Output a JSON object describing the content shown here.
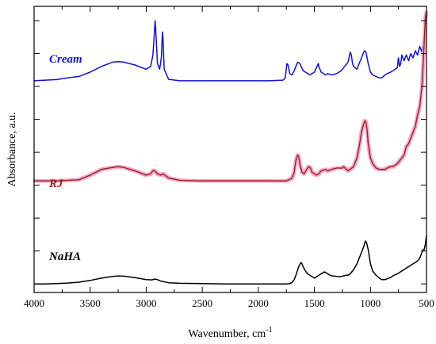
{
  "chart_data": {
    "type": "line",
    "title": "",
    "xlabel": "Wavenumber, cm",
    "xlabel_superscript": "-1",
    "ylabel": "Absorbance, a.u.",
    "xlim": [
      4000,
      500
    ],
    "x_reversed": true,
    "ylim": [
      0,
      1
    ],
    "y_ticks_labeled": false,
    "x_ticks": [
      4000,
      3500,
      3000,
      2500,
      2000,
      1500,
      1000,
      500
    ],
    "x_tick_labels": [
      "4000",
      "3500",
      "3000",
      "2500",
      "2000",
      "1500",
      "1000",
      "500"
    ],
    "y_ticks": [
      0.03,
      0.145,
      0.26,
      0.375,
      0.49,
      0.605,
      0.72,
      0.835,
      0.95
    ],
    "grid": false,
    "legend": "inline labels",
    "series": [
      {
        "name": "Cream",
        "color": "#1010d8",
        "glow": false,
        "x": [
          4000,
          3900,
          3800,
          3700,
          3600,
          3500,
          3400,
          3300,
          3250,
          3200,
          3100,
          3000,
          2960,
          2940,
          2925,
          2920,
          2915,
          2900,
          2880,
          2865,
          2855,
          2850,
          2840,
          2800,
          2700,
          2500,
          2300,
          2100,
          1900,
          1780,
          1760,
          1745,
          1735,
          1720,
          1700,
          1680,
          1650,
          1630,
          1600,
          1580,
          1560,
          1540,
          1500,
          1470,
          1465,
          1460,
          1440,
          1400,
          1380,
          1350,
          1300,
          1260,
          1240,
          1220,
          1200,
          1180,
          1170,
          1160,
          1150,
          1120,
          1100,
          1080,
          1060,
          1050,
          1040,
          1020,
          1000,
          980,
          950,
          920,
          900,
          870,
          850,
          820,
          800,
          780,
          760,
          750,
          740,
          730,
          720,
          700,
          680,
          660,
          640,
          620,
          600,
          580,
          560,
          540,
          530,
          520,
          510,
          500
        ],
        "y": [
          0.74,
          0.742,
          0.744,
          0.75,
          0.755,
          0.77,
          0.79,
          0.805,
          0.807,
          0.805,
          0.795,
          0.78,
          0.79,
          0.83,
          0.92,
          0.95,
          0.92,
          0.8,
          0.78,
          0.82,
          0.91,
          0.89,
          0.78,
          0.745,
          0.74,
          0.74,
          0.74,
          0.74,
          0.74,
          0.742,
          0.75,
          0.8,
          0.795,
          0.765,
          0.76,
          0.775,
          0.805,
          0.8,
          0.775,
          0.77,
          0.765,
          0.76,
          0.77,
          0.795,
          0.8,
          0.79,
          0.77,
          0.76,
          0.765,
          0.76,
          0.765,
          0.775,
          0.785,
          0.795,
          0.805,
          0.84,
          0.83,
          0.8,
          0.79,
          0.78,
          0.8,
          0.82,
          0.84,
          0.845,
          0.84,
          0.8,
          0.77,
          0.76,
          0.755,
          0.75,
          0.75,
          0.76,
          0.765,
          0.77,
          0.775,
          0.78,
          0.785,
          0.82,
          0.79,
          0.8,
          0.83,
          0.81,
          0.83,
          0.81,
          0.835,
          0.82,
          0.845,
          0.83,
          0.86,
          0.84,
          0.88,
          0.84,
          0.88,
          0.9
        ]
      },
      {
        "name": "RJ",
        "color": "#a81c1c",
        "glow": true,
        "x": [
          4000,
          3900,
          3800,
          3700,
          3600,
          3500,
          3400,
          3300,
          3250,
          3200,
          3100,
          3000,
          2960,
          2940,
          2930,
          2900,
          2870,
          2850,
          2800,
          2700,
          2500,
          2300,
          2100,
          1900,
          1750,
          1720,
          1700,
          1680,
          1665,
          1650,
          1640,
          1630,
          1610,
          1590,
          1570,
          1550,
          1535,
          1520,
          1500,
          1480,
          1460,
          1440,
          1400,
          1380,
          1350,
          1300,
          1250,
          1240,
          1200,
          1150,
          1120,
          1100,
          1080,
          1060,
          1050,
          1040,
          1030,
          1020,
          1000,
          980,
          950,
          920,
          900,
          870,
          850,
          820,
          800,
          780,
          760,
          740,
          720,
          700,
          680,
          660,
          640,
          620,
          600,
          580,
          560,
          540,
          530,
          520,
          510,
          500
        ],
        "y": [
          0.39,
          0.39,
          0.39,
          0.392,
          0.394,
          0.41,
          0.43,
          0.437,
          0.44,
          0.437,
          0.425,
          0.41,
          0.415,
          0.425,
          0.427,
          0.415,
          0.41,
          0.415,
          0.4,
          0.392,
          0.39,
          0.39,
          0.39,
          0.39,
          0.39,
          0.395,
          0.4,
          0.42,
          0.46,
          0.48,
          0.475,
          0.45,
          0.42,
          0.415,
          0.43,
          0.44,
          0.435,
          0.42,
          0.415,
          0.41,
          0.415,
          0.425,
          0.43,
          0.425,
          0.43,
          0.435,
          0.435,
          0.44,
          0.425,
          0.44,
          0.47,
          0.51,
          0.56,
          0.59,
          0.6,
          0.595,
          0.57,
          0.52,
          0.47,
          0.45,
          0.435,
          0.43,
          0.43,
          0.43,
          0.435,
          0.44,
          0.44,
          0.445,
          0.45,
          0.46,
          0.47,
          0.48,
          0.51,
          0.52,
          0.54,
          0.56,
          0.58,
          0.62,
          0.65,
          0.72,
          0.8,
          0.88,
          0.96,
          0.98
        ]
      },
      {
        "name": "NaHA",
        "color": "#000000",
        "glow": false,
        "x": [
          4000,
          3900,
          3800,
          3700,
          3600,
          3500,
          3400,
          3300,
          3250,
          3200,
          3100,
          3000,
          2950,
          2920,
          2900,
          2870,
          2800,
          2700,
          2500,
          2300,
          2100,
          1900,
          1750,
          1720,
          1700,
          1680,
          1660,
          1640,
          1620,
          1610,
          1600,
          1580,
          1560,
          1540,
          1500,
          1480,
          1460,
          1440,
          1420,
          1410,
          1400,
          1380,
          1360,
          1340,
          1320,
          1300,
          1280,
          1260,
          1240,
          1220,
          1200,
          1180,
          1150,
          1120,
          1100,
          1080,
          1060,
          1045,
          1035,
          1020,
          1000,
          980,
          950,
          920,
          900,
          870,
          850,
          820,
          800,
          780,
          760,
          740,
          720,
          700,
          680,
          660,
          640,
          620,
          600,
          580,
          560,
          540,
          530,
          520,
          510,
          500
        ],
        "y": [
          0.03,
          0.03,
          0.031,
          0.033,
          0.036,
          0.042,
          0.05,
          0.056,
          0.058,
          0.057,
          0.052,
          0.045,
          0.044,
          0.047,
          0.045,
          0.04,
          0.034,
          0.032,
          0.031,
          0.03,
          0.03,
          0.03,
          0.03,
          0.031,
          0.035,
          0.045,
          0.065,
          0.09,
          0.105,
          0.1,
          0.09,
          0.075,
          0.065,
          0.06,
          0.05,
          0.055,
          0.06,
          0.065,
          0.07,
          0.072,
          0.07,
          0.065,
          0.06,
          0.058,
          0.057,
          0.056,
          0.055,
          0.056,
          0.058,
          0.06,
          0.06,
          0.065,
          0.08,
          0.1,
          0.12,
          0.14,
          0.16,
          0.18,
          0.175,
          0.15,
          0.1,
          0.075,
          0.06,
          0.05,
          0.045,
          0.045,
          0.048,
          0.052,
          0.058,
          0.062,
          0.065,
          0.07,
          0.075,
          0.08,
          0.085,
          0.09,
          0.095,
          0.1,
          0.105,
          0.11,
          0.12,
          0.14,
          0.15,
          0.15,
          0.17,
          0.2
        ]
      }
    ]
  }
}
